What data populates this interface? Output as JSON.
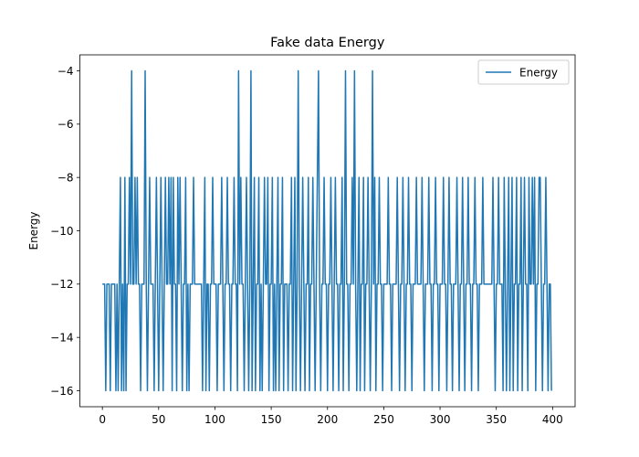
{
  "chart_data": {
    "type": "line",
    "title": "Fake data Energy",
    "xlabel": "",
    "ylabel": "Energy",
    "xlim": [
      -20,
      420
    ],
    "ylim": [
      -16.6,
      -3.4
    ],
    "x_ticks": [
      0,
      50,
      100,
      150,
      200,
      250,
      300,
      350,
      400
    ],
    "y_ticks": [
      -16,
      -14,
      -12,
      -10,
      -8,
      -6,
      -4
    ],
    "grid": false,
    "legend": {
      "position": "top-right"
    },
    "series": [
      {
        "name": "Energy",
        "color": "#1f77b4",
        "x_start": 0,
        "x_step": 1,
        "values": [
          -12,
          -12,
          -12,
          -16,
          -12,
          -12,
          -12,
          -16,
          -12,
          -12,
          -12,
          -12,
          -16,
          -12,
          -16,
          -12,
          -8,
          -16,
          -12,
          -16,
          -8,
          -16,
          -12,
          -12,
          -8,
          -12,
          -4,
          -12,
          -12,
          -8,
          -12,
          -8,
          -12,
          -12,
          -16,
          -12,
          -12,
          -12,
          -4,
          -12,
          -16,
          -12,
          -8,
          -12,
          -12,
          -12,
          -16,
          -12,
          -8,
          -12,
          -16,
          -12,
          -8,
          -12,
          -16,
          -12,
          -8,
          -12,
          -12,
          -8,
          -12,
          -8,
          -16,
          -8,
          -12,
          -12,
          -16,
          -8,
          -12,
          -8,
          -12,
          -16,
          -12,
          -12,
          -8,
          -16,
          -12,
          -16,
          -12,
          -12,
          -12,
          -8,
          -12,
          -12,
          -12,
          -12,
          -12,
          -12,
          -12,
          -16,
          -12,
          -8,
          -16,
          -12,
          -12,
          -16,
          -12,
          -12,
          -8,
          -12,
          -12,
          -12,
          -16,
          -12,
          -12,
          -12,
          -8,
          -12,
          -16,
          -12,
          -12,
          -8,
          -12,
          -12,
          -16,
          -12,
          -12,
          -8,
          -12,
          -12,
          -16,
          -4,
          -12,
          -8,
          -12,
          -12,
          -16,
          -12,
          -8,
          -12,
          -16,
          -12,
          -4,
          -16,
          -12,
          -8,
          -16,
          -12,
          -12,
          -8,
          -16,
          -12,
          -16,
          -12,
          -8,
          -12,
          -12,
          -8,
          -16,
          -12,
          -12,
          -8,
          -16,
          -12,
          -16,
          -12,
          -8,
          -16,
          -12,
          -12,
          -8,
          -16,
          -12,
          -12,
          -12,
          -16,
          -12,
          -12,
          -8,
          -16,
          -12,
          -8,
          -16,
          -12,
          -4,
          -12,
          -16,
          -12,
          -8,
          -12,
          -16,
          -12,
          -12,
          -8,
          -16,
          -12,
          -12,
          -8,
          -12,
          -16,
          -12,
          -8,
          -4,
          -12,
          -16,
          -12,
          -12,
          -8,
          -12,
          -12,
          -16,
          -12,
          -12,
          -8,
          -12,
          -16,
          -12,
          -8,
          -12,
          -12,
          -16,
          -12,
          -12,
          -8,
          -16,
          -12,
          -4,
          -12,
          -12,
          -16,
          -12,
          -12,
          -8,
          -12,
          -4,
          -12,
          -16,
          -12,
          -8,
          -16,
          -12,
          -12,
          -8,
          -16,
          -12,
          -12,
          -8,
          -12,
          -16,
          -12,
          -4,
          -12,
          -8,
          -16,
          -12,
          -12,
          -8,
          -12,
          -12,
          -16,
          -12,
          -12,
          -12,
          -12,
          -8,
          -12,
          -12,
          -16,
          -12,
          -12,
          -12,
          -12,
          -8,
          -12,
          -16,
          -12,
          -12,
          -8,
          -12,
          -16,
          -12,
          -12,
          -8,
          -12,
          -12,
          -16,
          -12,
          -12,
          -12,
          -8,
          -12,
          -12,
          -12,
          -12,
          -8,
          -12,
          -16,
          -12,
          -12,
          -12,
          -8,
          -12,
          -12,
          -16,
          -12,
          -12,
          -8,
          -12,
          -12,
          -16,
          -12,
          -12,
          -12,
          -8,
          -12,
          -12,
          -16,
          -12,
          -8,
          -12,
          -12,
          -16,
          -12,
          -12,
          -12,
          -8,
          -12,
          -16,
          -12,
          -12,
          -8,
          -12,
          -16,
          -12,
          -12,
          -8,
          -12,
          -12,
          -16,
          -12,
          -12,
          -8,
          -12,
          -12,
          -16,
          -12,
          -12,
          -12,
          -8,
          -12,
          -12,
          -12,
          -12,
          -12,
          -12,
          -12,
          -12,
          -8,
          -12,
          -16,
          -12,
          -12,
          -8,
          -12,
          -12,
          -12,
          -16,
          -8,
          -12,
          -16,
          -12,
          -8,
          -16,
          -12,
          -8,
          -16,
          -12,
          -12,
          -8,
          -16,
          -12,
          -12,
          -8,
          -16,
          -12,
          -8,
          -12,
          -12,
          -16,
          -8,
          -12,
          -12,
          -8,
          -12,
          -8,
          -16,
          -12,
          -12,
          -8,
          -8,
          -12,
          -16,
          -12,
          -12,
          -8,
          -12,
          -16,
          -12,
          -12,
          -16
        ]
      }
    ]
  }
}
